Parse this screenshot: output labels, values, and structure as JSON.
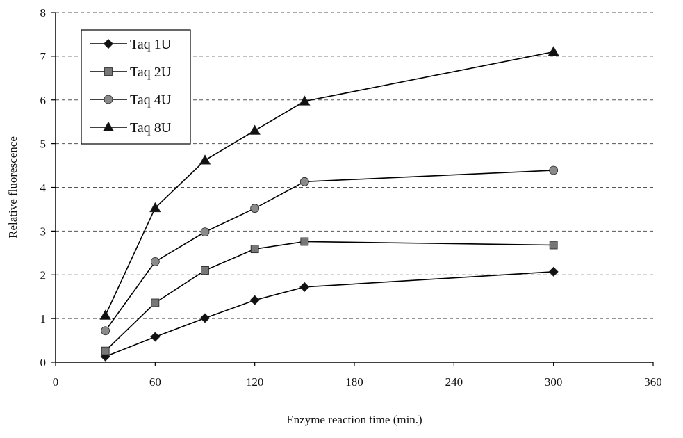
{
  "chart_data": {
    "type": "line",
    "title": "",
    "xlabel": "Enzyme reaction time (min.)",
    "ylabel": "Relative fluorescence",
    "xlim": [
      0,
      360
    ],
    "ylim": [
      0,
      8
    ],
    "x_ticks": [
      0,
      60,
      120,
      180,
      240,
      300,
      360
    ],
    "y_ticks": [
      0,
      1,
      2,
      3,
      4,
      5,
      6,
      7,
      8
    ],
    "grid": "horizontal dashed",
    "legend_position": "top-left",
    "x": [
      30,
      60,
      90,
      120,
      150,
      300
    ],
    "series": [
      {
        "name": "Taq 1U",
        "marker": "diamond",
        "color": "#000000",
        "values": [
          0.13,
          0.58,
          1.01,
          1.42,
          1.72,
          2.07
        ]
      },
      {
        "name": "Taq 2U",
        "marker": "square",
        "color": "#000000",
        "values": [
          0.26,
          1.36,
          2.1,
          2.59,
          2.76,
          2.68
        ]
      },
      {
        "name": "Taq 4U",
        "marker": "circle",
        "color": "#000000",
        "values": [
          0.72,
          2.3,
          2.98,
          3.52,
          4.13,
          4.39
        ]
      },
      {
        "name": "Taq 8U",
        "marker": "triangle",
        "color": "#000000",
        "values": [
          1.07,
          3.53,
          4.62,
          5.3,
          5.97,
          7.1
        ]
      }
    ]
  }
}
